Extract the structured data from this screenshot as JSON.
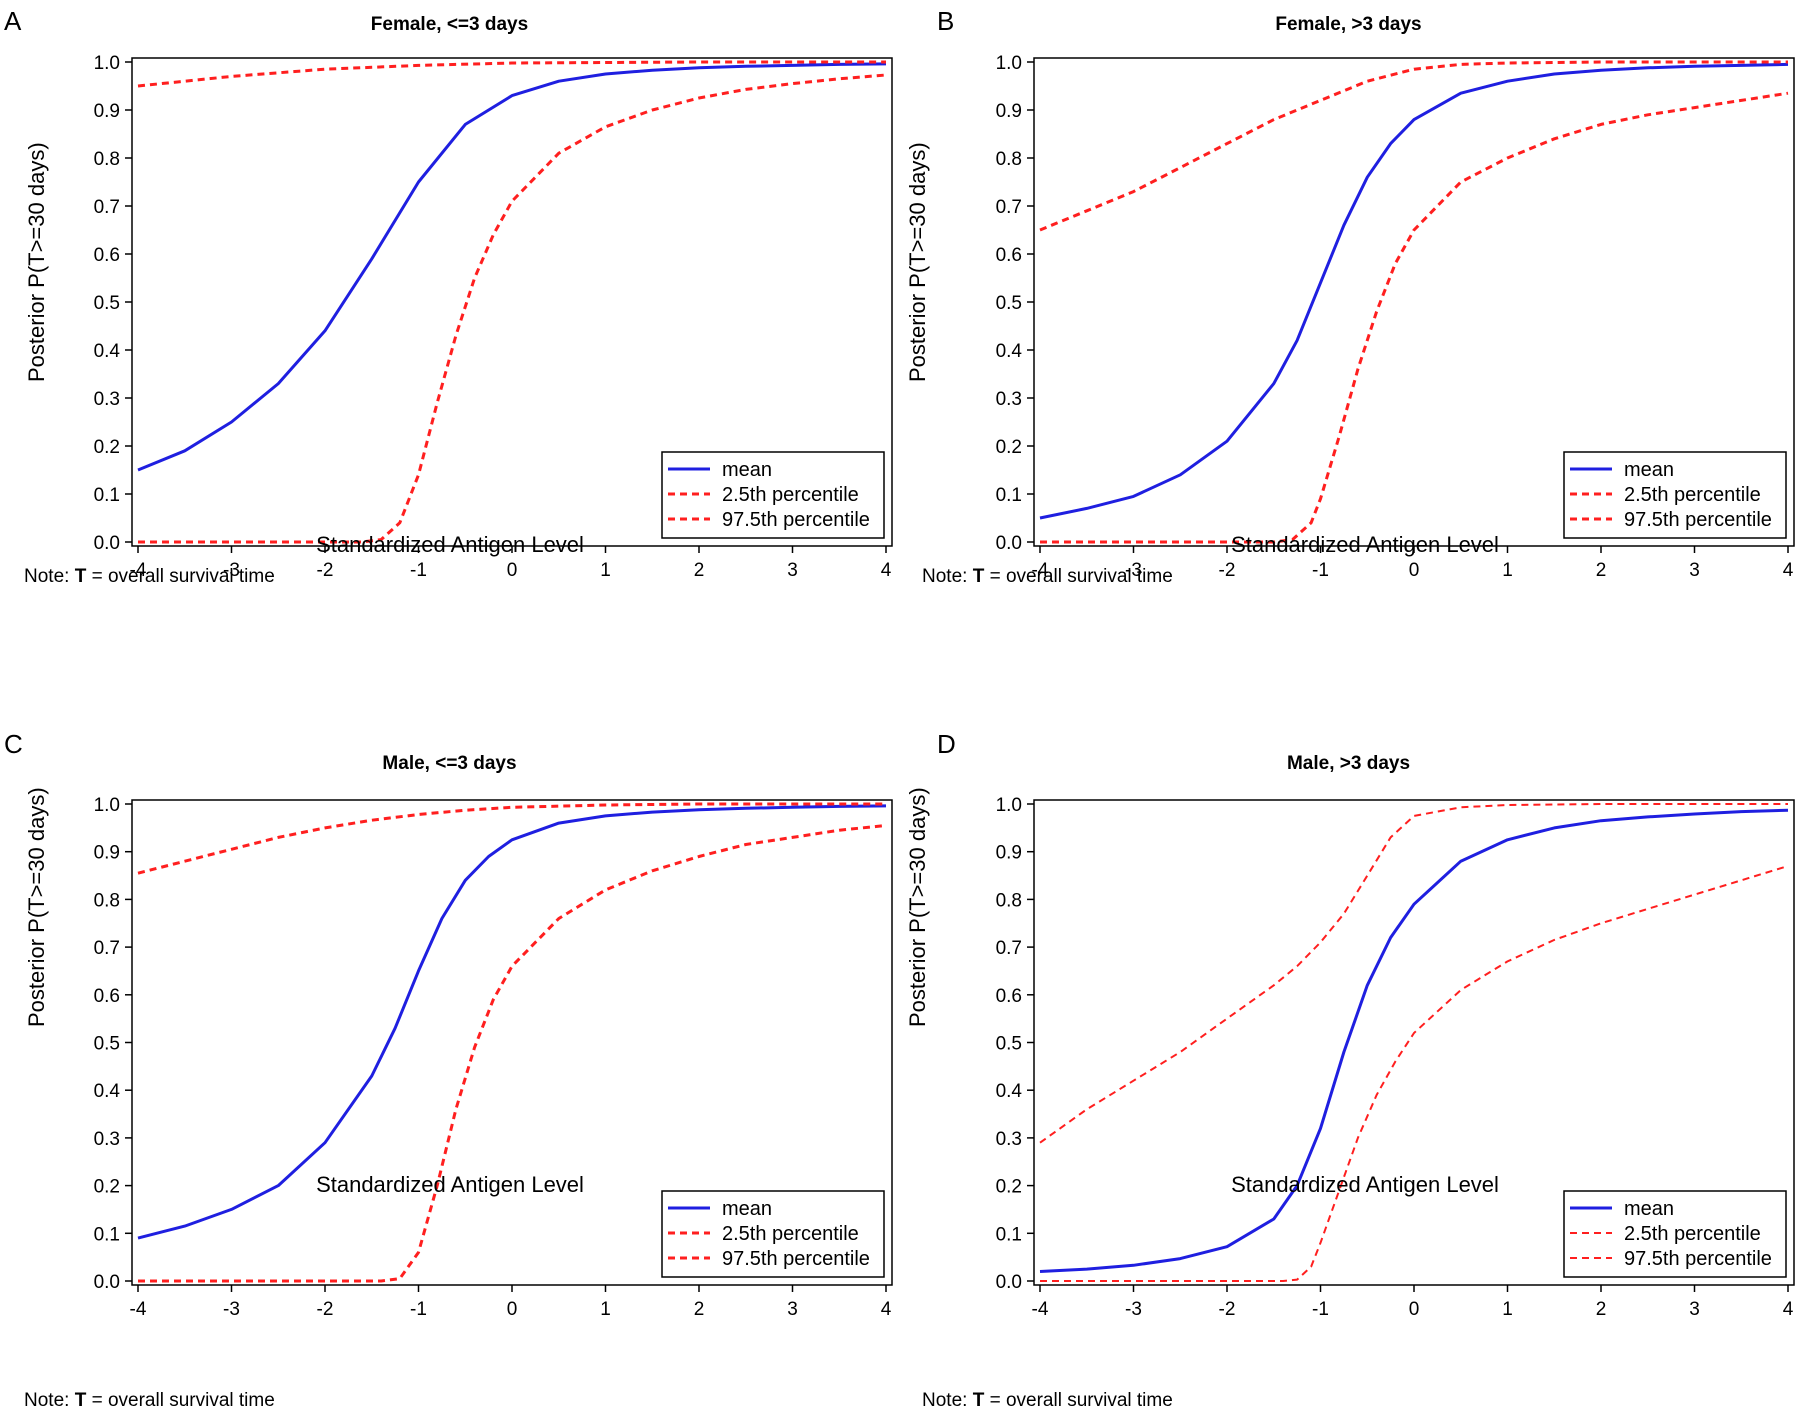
{
  "chart_data": [
    {
      "type": "line",
      "panel_label": "A",
      "title": "Female, <=3 days",
      "xlabel": "Standardized Antigen Level",
      "ylabel": "Posterior P(T>=30 days)",
      "note_prefix": "Note:",
      "note_var": "T",
      "note_text": "= overall survival time",
      "xlim": [
        -4,
        4
      ],
      "ylim": [
        0,
        1
      ],
      "xticks": [
        "-4",
        "-3",
        "-2",
        "-1",
        "0",
        "1",
        "2",
        "3",
        "4"
      ],
      "yticks": [
        "0.0",
        "0.1",
        "0.2",
        "0.3",
        "0.4",
        "0.5",
        "0.6",
        "0.7",
        "0.8",
        "0.9",
        "1.0"
      ],
      "legend": [
        "mean",
        "2.5th percentile",
        "97.5th percentile"
      ],
      "series": [
        {
          "name": "mean",
          "color": "#1f1fe0",
          "style": "solid",
          "x": [
            -4,
            -3.5,
            -3,
            -2.5,
            -2,
            -1.5,
            -1,
            -0.5,
            0,
            0.5,
            1,
            1.5,
            2,
            2.5,
            3,
            3.5,
            4
          ],
          "y": [
            0.15,
            0.19,
            0.25,
            0.33,
            0.44,
            0.59,
            0.75,
            0.87,
            0.93,
            0.96,
            0.975,
            0.983,
            0.988,
            0.991,
            0.993,
            0.995,
            0.996
          ]
        },
        {
          "name": "2.5th percentile",
          "color": "#ff1f1f",
          "style": "dashed",
          "x": [
            -4,
            -3,
            -2,
            -1.6,
            -1.4,
            -1.2,
            -1.0,
            -0.8,
            -0.6,
            -0.4,
            -0.2,
            0,
            0.5,
            1,
            1.5,
            2,
            2.5,
            3,
            3.5,
            4
          ],
          "y": [
            0.0,
            0.0,
            0.0,
            0.0,
            0.005,
            0.04,
            0.14,
            0.29,
            0.43,
            0.55,
            0.64,
            0.71,
            0.81,
            0.865,
            0.9,
            0.925,
            0.943,
            0.955,
            0.965,
            0.973
          ]
        },
        {
          "name": "97.5th percentile",
          "color": "#ff1f1f",
          "style": "dashed",
          "x": [
            -4,
            -3,
            -2,
            -1,
            0,
            1,
            2,
            3,
            4
          ],
          "y": [
            0.95,
            0.97,
            0.985,
            0.993,
            0.998,
            0.999,
            1.0,
            1.0,
            1.0
          ]
        }
      ]
    },
    {
      "type": "line",
      "panel_label": "B",
      "title": "Female, >3 days",
      "xlabel": "Standardized Antigen Level",
      "ylabel": "Posterior P(T>=30 days)",
      "note_prefix": "Note:",
      "note_var": "T",
      "note_text": "= overall survival time",
      "xlim": [
        -4,
        4
      ],
      "ylim": [
        0,
        1
      ],
      "xticks": [
        "-4",
        "-3",
        "-2",
        "-1",
        "0",
        "1",
        "2",
        "3",
        "4"
      ],
      "yticks": [
        "0.0",
        "0.1",
        "0.2",
        "0.3",
        "0.4",
        "0.5",
        "0.6",
        "0.7",
        "0.8",
        "0.9",
        "1.0"
      ],
      "legend": [
        "mean",
        "2.5th percentile",
        "97.5th percentile"
      ],
      "series": [
        {
          "name": "mean",
          "color": "#1f1fe0",
          "style": "solid",
          "x": [
            -4,
            -3.5,
            -3,
            -2.5,
            -2,
            -1.5,
            -1.25,
            -1,
            -0.75,
            -0.5,
            -0.25,
            0,
            0.5,
            1,
            1.5,
            2,
            2.5,
            3,
            3.5,
            4
          ],
          "y": [
            0.05,
            0.07,
            0.095,
            0.14,
            0.21,
            0.33,
            0.42,
            0.54,
            0.66,
            0.76,
            0.83,
            0.88,
            0.935,
            0.96,
            0.975,
            0.983,
            0.988,
            0.991,
            0.993,
            0.995
          ]
        },
        {
          "name": "2.5th percentile",
          "color": "#ff1f1f",
          "style": "dashed",
          "x": [
            -4,
            -3,
            -2,
            -1.5,
            -1.3,
            -1.1,
            -1.0,
            -0.8,
            -0.6,
            -0.4,
            -0.2,
            0,
            0.5,
            1,
            1.5,
            2,
            2.5,
            3,
            3.5,
            4
          ],
          "y": [
            0.0,
            0.0,
            0.0,
            0.0,
            0.005,
            0.04,
            0.09,
            0.22,
            0.36,
            0.48,
            0.58,
            0.65,
            0.75,
            0.8,
            0.84,
            0.87,
            0.89,
            0.905,
            0.92,
            0.935
          ]
        },
        {
          "name": "97.5th percentile",
          "color": "#ff1f1f",
          "style": "dashed",
          "x": [
            -4,
            -3.5,
            -3,
            -2.5,
            -2,
            -1.5,
            -1,
            -0.5,
            0,
            0.5,
            1,
            2,
            3,
            4
          ],
          "y": [
            0.65,
            0.69,
            0.73,
            0.78,
            0.83,
            0.88,
            0.92,
            0.96,
            0.985,
            0.995,
            0.998,
            1.0,
            1.0,
            1.0
          ]
        }
      ]
    },
    {
      "type": "line",
      "panel_label": "C",
      "title": "Male, <=3 days",
      "xlabel": "Standardized Antigen Level",
      "ylabel": "Posterior P(T>=30 days)",
      "note_prefix": "Note:",
      "note_var": "T",
      "note_text": "= overall survival time",
      "xlim": [
        -4,
        4
      ],
      "ylim": [
        0,
        1
      ],
      "xticks": [
        "-4",
        "-3",
        "-2",
        "-1",
        "0",
        "1",
        "2",
        "3",
        "4"
      ],
      "yticks": [
        "0.0",
        "0.1",
        "0.2",
        "0.3",
        "0.4",
        "0.5",
        "0.6",
        "0.7",
        "0.8",
        "0.9",
        "1.0"
      ],
      "legend": [
        "mean",
        "2.5th percentile",
        "97.5th percentile"
      ],
      "series": [
        {
          "name": "mean",
          "color": "#1f1fe0",
          "style": "solid",
          "x": [
            -4,
            -3.5,
            -3,
            -2.5,
            -2,
            -1.5,
            -1.25,
            -1,
            -0.75,
            -0.5,
            -0.25,
            0,
            0.5,
            1,
            1.5,
            2,
            2.5,
            3,
            3.5,
            4
          ],
          "y": [
            0.09,
            0.115,
            0.15,
            0.2,
            0.29,
            0.43,
            0.53,
            0.65,
            0.76,
            0.84,
            0.89,
            0.925,
            0.96,
            0.975,
            0.983,
            0.988,
            0.991,
            0.993,
            0.995,
            0.996
          ]
        },
        {
          "name": "2.5th percentile",
          "color": "#ff1f1f",
          "style": "dashed",
          "x": [
            -4,
            -3,
            -2,
            -1.4,
            -1.2,
            -1.0,
            -0.8,
            -0.6,
            -0.4,
            -0.2,
            0,
            0.5,
            1,
            1.5,
            2,
            2.5,
            3,
            3.5,
            4
          ],
          "y": [
            0.0,
            0.0,
            0.0,
            0.0,
            0.005,
            0.06,
            0.2,
            0.36,
            0.49,
            0.59,
            0.66,
            0.76,
            0.82,
            0.86,
            0.89,
            0.915,
            0.93,
            0.945,
            0.955
          ]
        },
        {
          "name": "97.5th percentile",
          "color": "#ff1f1f",
          "style": "dashed",
          "x": [
            -4,
            -3.5,
            -3,
            -2.5,
            -2,
            -1.5,
            -1,
            -0.5,
            0,
            1,
            2,
            3,
            4
          ],
          "y": [
            0.855,
            0.88,
            0.905,
            0.93,
            0.95,
            0.966,
            0.978,
            0.987,
            0.993,
            0.998,
            1.0,
            1.0,
            1.0
          ]
        }
      ]
    },
    {
      "type": "line",
      "panel_label": "D",
      "title": "Male, >3 days",
      "xlabel": "Standardized Antigen Level",
      "ylabel": "Posterior P(T>=30 days)",
      "note_prefix": "Note:",
      "note_var": "T",
      "note_text": "= overall survival time",
      "xlim": [
        -4,
        4
      ],
      "ylim": [
        0,
        1
      ],
      "xticks": [
        "-4",
        "-3",
        "-2",
        "-1",
        "0",
        "1",
        "2",
        "3",
        "4"
      ],
      "yticks": [
        "0.0",
        "0.1",
        "0.2",
        "0.3",
        "0.4",
        "0.5",
        "0.6",
        "0.7",
        "0.8",
        "0.9",
        "1.0"
      ],
      "legend": [
        "mean",
        "2.5th percentile",
        "97.5th percentile"
      ],
      "series": [
        {
          "name": "mean",
          "color": "#1f1fe0",
          "style": "solid",
          "x": [
            -4,
            -3.5,
            -3,
            -2.5,
            -2,
            -1.5,
            -1.25,
            -1,
            -0.75,
            -0.5,
            -0.25,
            0,
            0.5,
            1,
            1.5,
            2,
            2.5,
            3,
            3.5,
            4
          ],
          "y": [
            0.02,
            0.025,
            0.033,
            0.047,
            0.072,
            0.13,
            0.2,
            0.32,
            0.48,
            0.62,
            0.72,
            0.79,
            0.88,
            0.925,
            0.95,
            0.965,
            0.973,
            0.979,
            0.984,
            0.987
          ]
        },
        {
          "name": "2.5th percentile",
          "color": "#ff1f1f",
          "style": "dashed",
          "x": [
            -4,
            -3,
            -2,
            -1.4,
            -1.25,
            -1.1,
            -1.0,
            -0.8,
            -0.6,
            -0.4,
            -0.2,
            0,
            0.5,
            1,
            1.5,
            2,
            2.5,
            3,
            3.5,
            4
          ],
          "y": [
            0.0,
            0.0,
            0.0,
            0.0,
            0.003,
            0.03,
            0.08,
            0.19,
            0.3,
            0.39,
            0.46,
            0.52,
            0.61,
            0.67,
            0.715,
            0.75,
            0.78,
            0.81,
            0.84,
            0.87
          ]
        },
        {
          "name": "97.5th percentile",
          "color": "#ff1f1f",
          "style": "dashed",
          "x": [
            -4,
            -3.5,
            -3,
            -2.5,
            -2,
            -1.5,
            -1.25,
            -1,
            -0.75,
            -0.5,
            -0.25,
            0,
            0.5,
            1,
            2,
            3,
            4
          ],
          "y": [
            0.29,
            0.36,
            0.42,
            0.48,
            0.55,
            0.62,
            0.66,
            0.71,
            0.77,
            0.85,
            0.93,
            0.975,
            0.993,
            0.998,
            1.0,
            1.0,
            1.0
          ]
        }
      ]
    }
  ]
}
